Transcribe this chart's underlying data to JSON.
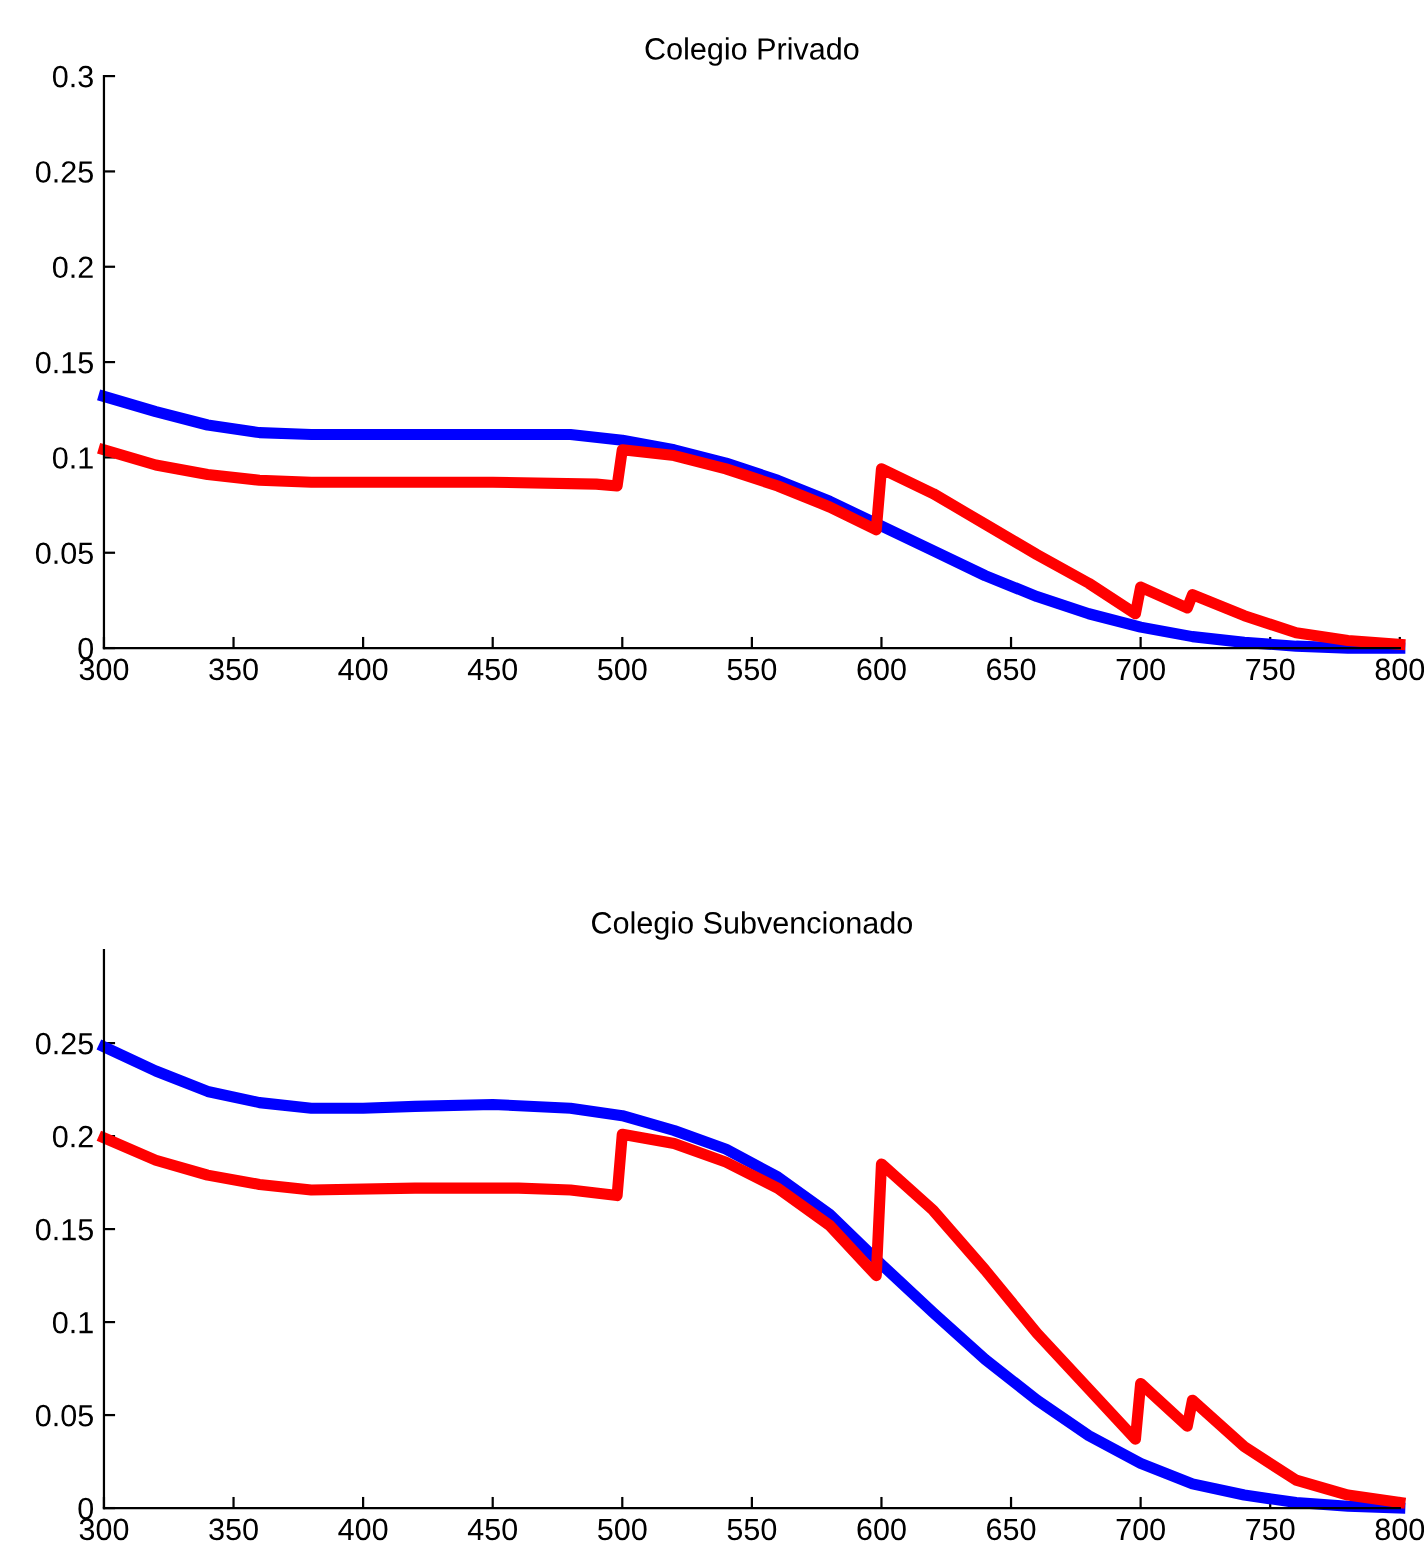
{
  "chart_data": [
    {
      "type": "line",
      "title": "Colegio Privado",
      "xlim": [
        300,
        800
      ],
      "xticks": [
        300,
        350,
        400,
        450,
        500,
        550,
        600,
        650,
        700,
        750,
        800
      ],
      "ylim": [
        0,
        0.3
      ],
      "yticks": [
        0,
        0.05,
        0.1,
        0.15,
        0.2,
        0.25,
        0.3
      ],
      "grid": false,
      "legend": false,
      "marker": "none",
      "line_style": "solid",
      "series": [
        {
          "color": "#0000ff",
          "x": [
            300,
            320,
            340,
            360,
            380,
            400,
            450,
            480,
            500,
            520,
            540,
            560,
            580,
            600,
            620,
            640,
            660,
            680,
            700,
            720,
            740,
            760,
            780,
            800
          ],
          "values": [
            0.132,
            0.124,
            0.117,
            0.113,
            0.112,
            0.112,
            0.112,
            0.112,
            0.109,
            0.104,
            0.097,
            0.088,
            0.077,
            0.064,
            0.051,
            0.038,
            0.027,
            0.018,
            0.011,
            0.006,
            0.003,
            0.001,
            0,
            0
          ]
        },
        {
          "color": "#ff0000",
          "x": [
            300,
            320,
            340,
            360,
            380,
            450,
            490,
            498,
            500,
            520,
            540,
            560,
            580,
            598,
            600,
            620,
            640,
            660,
            680,
            698,
            700,
            718,
            720,
            740,
            760,
            780,
            800
          ],
          "values": [
            0.104,
            0.096,
            0.091,
            0.088,
            0.087,
            0.087,
            0.086,
            0.085,
            0.104,
            0.101,
            0.094,
            0.085,
            0.074,
            0.062,
            0.094,
            0.081,
            0.065,
            0.049,
            0.034,
            0.018,
            0.032,
            0.021,
            0.028,
            0.017,
            0.008,
            0.004,
            0.002
          ]
        }
      ]
    },
    {
      "type": "line",
      "title": "Colegio Subvencionado",
      "xlim": [
        300,
        800
      ],
      "xticks": [
        300,
        350,
        400,
        450,
        500,
        550,
        600,
        650,
        700,
        750,
        800
      ],
      "ylim": [
        0,
        0.3
      ],
      "yticks": [
        0,
        0.05,
        0.1,
        0.15,
        0.2,
        0.25
      ],
      "grid": false,
      "legend": false,
      "marker": "none",
      "line_style": "solid",
      "series": [
        {
          "color": "#0000ff",
          "x": [
            300,
            320,
            340,
            360,
            380,
            400,
            420,
            450,
            480,
            500,
            520,
            540,
            560,
            580,
            600,
            620,
            640,
            660,
            680,
            700,
            720,
            740,
            760,
            780,
            800
          ],
          "values": [
            0.248,
            0.235,
            0.224,
            0.218,
            0.215,
            0.215,
            0.216,
            0.217,
            0.215,
            0.211,
            0.203,
            0.193,
            0.178,
            0.158,
            0.131,
            0.105,
            0.08,
            0.058,
            0.039,
            0.024,
            0.013,
            0.007,
            0.003,
            0.001,
            0
          ]
        },
        {
          "color": "#ff0000",
          "x": [
            300,
            320,
            340,
            360,
            380,
            420,
            460,
            480,
            498,
            500,
            520,
            540,
            560,
            580,
            598,
            600,
            620,
            640,
            660,
            680,
            698,
            700,
            718,
            720,
            740,
            760,
            780,
            800
          ],
          "values": [
            0.199,
            0.187,
            0.179,
            0.174,
            0.171,
            0.172,
            0.172,
            0.171,
            0.168,
            0.201,
            0.196,
            0.186,
            0.172,
            0.152,
            0.125,
            0.185,
            0.16,
            0.128,
            0.094,
            0.064,
            0.037,
            0.067,
            0.044,
            0.058,
            0.033,
            0.015,
            0.007,
            0.003
          ]
        }
      ]
    }
  ]
}
